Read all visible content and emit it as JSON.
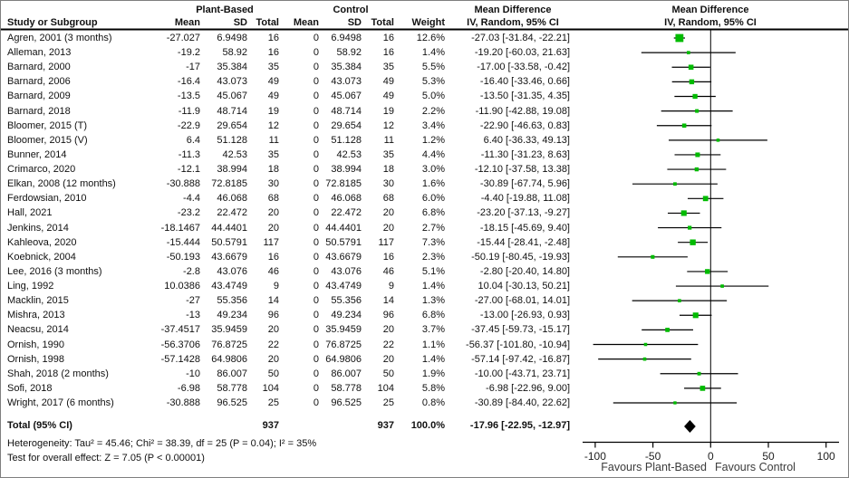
{
  "header": {
    "group1": "Plant-Based",
    "group2": "Control",
    "md_title_text": "Mean Difference",
    "md_title_plot": "Mean Difference",
    "study": "Study or Subgroup",
    "mean": "Mean",
    "sd": "SD",
    "total": "Total",
    "mean2": "Mean",
    "sd2": "SD",
    "total2": "Total",
    "weight": "Weight",
    "ci_text": "IV, Random, 95% CI",
    "ci_plot": "IV, Random, 95% CI"
  },
  "chart_data": {
    "type": "forest",
    "effect_measure": "Mean Difference, IV, Random, 95% CI",
    "studies": [
      {
        "name": "Agren, 2001 (3 months)",
        "mean": "-27.027",
        "sd": "6.9498",
        "total": "16",
        "c_mean": "0",
        "c_sd": "6.9498",
        "c_total": "16",
        "weight": "12.6%",
        "weight_pct": 12.6,
        "md_label": "-27.03 [-31.84, -22.21]",
        "est": -27.03,
        "lo": -31.84,
        "hi": -22.21
      },
      {
        "name": "Alleman, 2013",
        "mean": "-19.2",
        "sd": "58.92",
        "total": "16",
        "c_mean": "0",
        "c_sd": "58.92",
        "c_total": "16",
        "weight": "1.4%",
        "weight_pct": 1.4,
        "md_label": "-19.20 [-60.03, 21.63]",
        "est": -19.2,
        "lo": -60.03,
        "hi": 21.63
      },
      {
        "name": "Barnard, 2000",
        "mean": "-17",
        "sd": "35.384",
        "total": "35",
        "c_mean": "0",
        "c_sd": "35.384",
        "c_total": "35",
        "weight": "5.5%",
        "weight_pct": 5.5,
        "md_label": "-17.00 [-33.58, -0.42]",
        "est": -17.0,
        "lo": -33.58,
        "hi": -0.42
      },
      {
        "name": "Barnard, 2006",
        "mean": "-16.4",
        "sd": "43.073",
        "total": "49",
        "c_mean": "0",
        "c_sd": "43.073",
        "c_total": "49",
        "weight": "5.3%",
        "weight_pct": 5.3,
        "md_label": "-16.40 [-33.46, 0.66]",
        "est": -16.4,
        "lo": -33.46,
        "hi": 0.66
      },
      {
        "name": "Barnard, 2009",
        "mean": "-13.5",
        "sd": "45.067",
        "total": "49",
        "c_mean": "0",
        "c_sd": "45.067",
        "c_total": "49",
        "weight": "5.0%",
        "weight_pct": 5.0,
        "md_label": "-13.50 [-31.35, 4.35]",
        "est": -13.5,
        "lo": -31.35,
        "hi": 4.35
      },
      {
        "name": "Barnard, 2018",
        "mean": "-11.9",
        "sd": "48.714",
        "total": "19",
        "c_mean": "0",
        "c_sd": "48.714",
        "c_total": "19",
        "weight": "2.2%",
        "weight_pct": 2.2,
        "md_label": "-11.90 [-42.88, 19.08]",
        "est": -11.9,
        "lo": -42.88,
        "hi": 19.08
      },
      {
        "name": "Bloomer, 2015 (T)",
        "mean": "-22.9",
        "sd": "29.654",
        "total": "12",
        "c_mean": "0",
        "c_sd": "29.654",
        "c_total": "12",
        "weight": "3.4%",
        "weight_pct": 3.4,
        "md_label": "-22.90 [-46.63, 0.83]",
        "est": -22.9,
        "lo": -46.63,
        "hi": 0.83
      },
      {
        "name": "Bloomer, 2015 (V)",
        "mean": "6.4",
        "sd": "51.128",
        "total": "11",
        "c_mean": "0",
        "c_sd": "51.128",
        "c_total": "11",
        "weight": "1.2%",
        "weight_pct": 1.2,
        "md_label": "6.40 [-36.33, 49.13]",
        "est": 6.4,
        "lo": -36.33,
        "hi": 49.13
      },
      {
        "name": "Bunner, 2014",
        "mean": "-11.3",
        "sd": "42.53",
        "total": "35",
        "c_mean": "0",
        "c_sd": "42.53",
        "c_total": "35",
        "weight": "4.4%",
        "weight_pct": 4.4,
        "md_label": "-11.30 [-31.23, 8.63]",
        "est": -11.3,
        "lo": -31.23,
        "hi": 8.63
      },
      {
        "name": "Crimarco, 2020",
        "mean": "-12.1",
        "sd": "38.994",
        "total": "18",
        "c_mean": "0",
        "c_sd": "38.994",
        "c_total": "18",
        "weight": "3.0%",
        "weight_pct": 3.0,
        "md_label": "-12.10 [-37.58, 13.38]",
        "est": -12.1,
        "lo": -37.58,
        "hi": 13.38
      },
      {
        "name": "Elkan, 2008 (12 months)",
        "mean": "-30.888",
        "sd": "72.8185",
        "total": "30",
        "c_mean": "0",
        "c_sd": "72.8185",
        "c_total": "30",
        "weight": "1.6%",
        "weight_pct": 1.6,
        "md_label": "-30.89 [-67.74, 5.96]",
        "est": -30.89,
        "lo": -67.74,
        "hi": 5.96
      },
      {
        "name": "Ferdowsian, 2010",
        "mean": "-4.4",
        "sd": "46.068",
        "total": "68",
        "c_mean": "0",
        "c_sd": "46.068",
        "c_total": "68",
        "weight": "6.0%",
        "weight_pct": 6.0,
        "md_label": "-4.40 [-19.88, 11.08]",
        "est": -4.4,
        "lo": -19.88,
        "hi": 11.08
      },
      {
        "name": "Hall, 2021",
        "mean": "-23.2",
        "sd": "22.472",
        "total": "20",
        "c_mean": "0",
        "c_sd": "22.472",
        "c_total": "20",
        "weight": "6.8%",
        "weight_pct": 6.8,
        "md_label": "-23.20 [-37.13, -9.27]",
        "est": -23.2,
        "lo": -37.13,
        "hi": -9.27
      },
      {
        "name": "Jenkins, 2014",
        "mean": "-18.1467",
        "sd": "44.4401",
        "total": "20",
        "c_mean": "0",
        "c_sd": "44.4401",
        "c_total": "20",
        "weight": "2.7%",
        "weight_pct": 2.7,
        "md_label": "-18.15 [-45.69, 9.40]",
        "est": -18.15,
        "lo": -45.69,
        "hi": 9.4
      },
      {
        "name": "Kahleova, 2020",
        "mean": "-15.444",
        "sd": "50.5791",
        "total": "117",
        "c_mean": "0",
        "c_sd": "50.5791",
        "c_total": "117",
        "weight": "7.3%",
        "weight_pct": 7.3,
        "md_label": "-15.44 [-28.41, -2.48]",
        "est": -15.44,
        "lo": -28.41,
        "hi": -2.48
      },
      {
        "name": "Koebnick, 2004",
        "mean": "-50.193",
        "sd": "43.6679",
        "total": "16",
        "c_mean": "0",
        "c_sd": "43.6679",
        "c_total": "16",
        "weight": "2.3%",
        "weight_pct": 2.3,
        "md_label": "-50.19 [-80.45, -19.93]",
        "est": -50.19,
        "lo": -80.45,
        "hi": -19.93
      },
      {
        "name": "Lee, 2016 (3 months)",
        "mean": "-2.8",
        "sd": "43.076",
        "total": "46",
        "c_mean": "0",
        "c_sd": "43.076",
        "c_total": "46",
        "weight": "5.1%",
        "weight_pct": 5.1,
        "md_label": "-2.80 [-20.40, 14.80]",
        "est": -2.8,
        "lo": -20.4,
        "hi": 14.8
      },
      {
        "name": "Ling, 1992",
        "mean": "10.0386",
        "sd": "43.4749",
        "total": "9",
        "c_mean": "0",
        "c_sd": "43.4749",
        "c_total": "9",
        "weight": "1.4%",
        "weight_pct": 1.4,
        "md_label": "10.04 [-30.13, 50.21]",
        "est": 10.04,
        "lo": -30.13,
        "hi": 50.21
      },
      {
        "name": "Macklin, 2015",
        "mean": "-27",
        "sd": "55.356",
        "total": "14",
        "c_mean": "0",
        "c_sd": "55.356",
        "c_total": "14",
        "weight": "1.3%",
        "weight_pct": 1.3,
        "md_label": "-27.00 [-68.01, 14.01]",
        "est": -27.0,
        "lo": -68.01,
        "hi": 14.01
      },
      {
        "name": "Mishra, 2013",
        "mean": "-13",
        "sd": "49.234",
        "total": "96",
        "c_mean": "0",
        "c_sd": "49.234",
        "c_total": "96",
        "weight": "6.8%",
        "weight_pct": 6.8,
        "md_label": "-13.00 [-26.93, 0.93]",
        "est": -13.0,
        "lo": -26.93,
        "hi": 0.93
      },
      {
        "name": "Neacsu, 2014",
        "mean": "-37.4517",
        "sd": "35.9459",
        "total": "20",
        "c_mean": "0",
        "c_sd": "35.9459",
        "c_total": "20",
        "weight": "3.7%",
        "weight_pct": 3.7,
        "md_label": "-37.45 [-59.73, -15.17]",
        "est": -37.45,
        "lo": -59.73,
        "hi": -15.17
      },
      {
        "name": "Ornish, 1990",
        "mean": "-56.3706",
        "sd": "76.8725",
        "total": "22",
        "c_mean": "0",
        "c_sd": "76.8725",
        "c_total": "22",
        "weight": "1.1%",
        "weight_pct": 1.1,
        "md_label": "-56.37 [-101.80, -10.94]",
        "est": -56.37,
        "lo": -101.8,
        "hi": -10.94
      },
      {
        "name": "Ornish, 1998",
        "mean": "-57.1428",
        "sd": "64.9806",
        "total": "20",
        "c_mean": "0",
        "c_sd": "64.9806",
        "c_total": "20",
        "weight": "1.4%",
        "weight_pct": 1.4,
        "md_label": "-57.14 [-97.42, -16.87]",
        "est": -57.14,
        "lo": -97.42,
        "hi": -16.87
      },
      {
        "name": "Shah, 2018 (2 months)",
        "mean": "-10",
        "sd": "86.007",
        "total": "50",
        "c_mean": "0",
        "c_sd": "86.007",
        "c_total": "50",
        "weight": "1.9%",
        "weight_pct": 1.9,
        "md_label": "-10.00 [-43.71, 23.71]",
        "est": -10.0,
        "lo": -43.71,
        "hi": 23.71
      },
      {
        "name": "Sofi, 2018",
        "mean": "-6.98",
        "sd": "58.778",
        "total": "104",
        "c_mean": "0",
        "c_sd": "58.778",
        "c_total": "104",
        "weight": "5.8%",
        "weight_pct": 5.8,
        "md_label": "-6.98 [-22.96, 9.00]",
        "est": -6.98,
        "lo": -22.96,
        "hi": 9.0
      },
      {
        "name": "Wright, 2017 (6 months)",
        "mean": "-30.888",
        "sd": "96.525",
        "total": "25",
        "c_mean": "0",
        "c_sd": "96.525",
        "c_total": "25",
        "weight": "0.8%",
        "weight_pct": 0.8,
        "md_label": "-30.89 [-84.40, 22.62]",
        "est": -30.89,
        "lo": -84.4,
        "hi": 22.62
      }
    ],
    "total": {
      "label": "Total (95% CI)",
      "total": "937",
      "c_total": "937",
      "weight": "100.0%",
      "md_label": "-17.96 [-22.95, -12.97]",
      "est": -17.96,
      "lo": -22.95,
      "hi": -12.97
    },
    "axis": {
      "min": -100,
      "max": 100,
      "tick_values": [
        -100,
        -50,
        0,
        50,
        100
      ],
      "ticks": [
        "-100",
        "-50",
        "0",
        "50",
        "100"
      ]
    },
    "favours_left": "Favours Plant-Based",
    "favours_right": "Favours Control",
    "colors": {
      "square": "#00bb00",
      "ci_line": "#000000",
      "diamond": "#000000",
      "axis": "#000000"
    }
  },
  "footnotes": {
    "heterogeneity": "Heterogeneity: Tau² = 45.46; Chi² = 38.39, df = 25 (P = 0.04); I² = 35%",
    "overall_effect": "Test for overall effect: Z = 7.05 (P < 0.00001)"
  }
}
